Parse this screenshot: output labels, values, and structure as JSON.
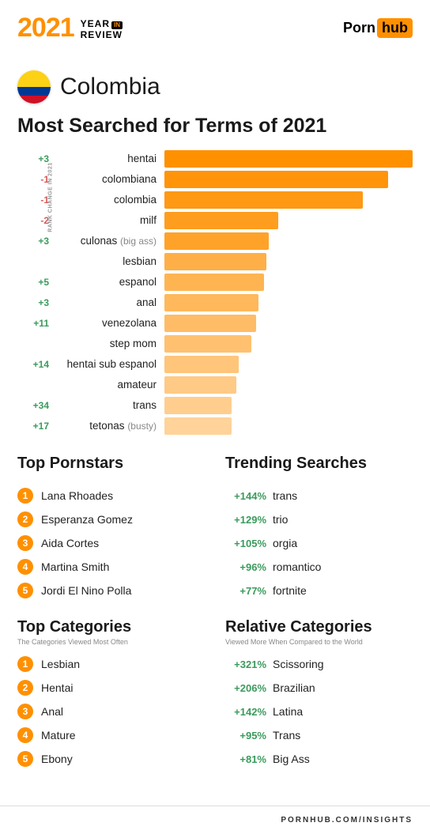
{
  "colors": {
    "orange": "#ff9000",
    "positive": "#3a9b5c",
    "negative": "#d85a5a",
    "text": "#1a1a1a",
    "muted": "#888888",
    "flag_yellow": "#fcd116",
    "flag_blue": "#003893",
    "flag_red": "#ce1126"
  },
  "header": {
    "year": "2021",
    "year_top": "YEAR",
    "year_in": "IN",
    "year_bottom": "REVIEW",
    "logo_porn": "Porn",
    "logo_hub": "hub"
  },
  "country": "Colombia",
  "main_title": "Most Searched for Terms of 2021",
  "axis_label": "RANK CHANGE IN 2021",
  "chart": {
    "bar_opacities": [
      1.0,
      0.96,
      0.92,
      0.88,
      0.84,
      0.72,
      0.68,
      0.64,
      0.6,
      0.56,
      0.52,
      0.48,
      0.44,
      0.4
    ],
    "max_value": 100,
    "rows": [
      {
        "change": "+3",
        "sign": "pos",
        "term": "hentai",
        "paren": "",
        "value": 100
      },
      {
        "change": "-1",
        "sign": "neg",
        "term": "colombiana",
        "paren": "",
        "value": 90
      },
      {
        "change": "-1",
        "sign": "neg",
        "term": "colombia",
        "paren": "",
        "value": 80
      },
      {
        "change": "-2",
        "sign": "neg",
        "term": "milf",
        "paren": "",
        "value": 46
      },
      {
        "change": "+3",
        "sign": "pos",
        "term": "culonas",
        "paren": "(big ass)",
        "value": 42
      },
      {
        "change": "",
        "sign": "",
        "term": "lesbian",
        "paren": "",
        "value": 41
      },
      {
        "change": "+5",
        "sign": "pos",
        "term": "espanol",
        "paren": "",
        "value": 40
      },
      {
        "change": "+3",
        "sign": "pos",
        "term": "anal",
        "paren": "",
        "value": 38
      },
      {
        "change": "+11",
        "sign": "pos",
        "term": "venezolana",
        "paren": "",
        "value": 37
      },
      {
        "change": "",
        "sign": "",
        "term": "step mom",
        "paren": "",
        "value": 35
      },
      {
        "change": "+14",
        "sign": "pos",
        "term": "hentai sub espanol",
        "paren": "",
        "value": 30
      },
      {
        "change": "",
        "sign": "",
        "term": "amateur",
        "paren": "",
        "value": 29
      },
      {
        "change": "+34",
        "sign": "pos",
        "term": "trans",
        "paren": "",
        "value": 27
      },
      {
        "change": "+17",
        "sign": "pos",
        "term": "tetonas",
        "paren": "(busty)",
        "value": 27
      }
    ]
  },
  "top_pornstars": {
    "title": "Top Pornstars",
    "items": [
      "Lana Rhoades",
      "Esperanza Gomez",
      "Aida Cortes",
      "Martina Smith",
      "Jordi El Nino Polla"
    ]
  },
  "trending_searches": {
    "title": "Trending Searches",
    "items": [
      {
        "pct": "+144%",
        "term": "trans"
      },
      {
        "pct": "+129%",
        "term": "trio"
      },
      {
        "pct": "+105%",
        "term": "orgia"
      },
      {
        "pct": "+96%",
        "term": "romantico"
      },
      {
        "pct": "+77%",
        "term": "fortnite"
      }
    ]
  },
  "top_categories": {
    "title": "Top Categories",
    "subtitle": "The Categories Viewed Most Often",
    "items": [
      "Lesbian",
      "Hentai",
      "Anal",
      "Mature",
      "Ebony"
    ]
  },
  "relative_categories": {
    "title": "Relative Categories",
    "subtitle": "Viewed More When Compared to the World",
    "items": [
      {
        "pct": "+321%",
        "term": "Scissoring"
      },
      {
        "pct": "+206%",
        "term": "Brazilian"
      },
      {
        "pct": "+142%",
        "term": "Latina"
      },
      {
        "pct": "+95%",
        "term": "Trans"
      },
      {
        "pct": "+81%",
        "term": "Big Ass"
      }
    ]
  },
  "footer": "PORNHUB.COM/INSIGHTS"
}
